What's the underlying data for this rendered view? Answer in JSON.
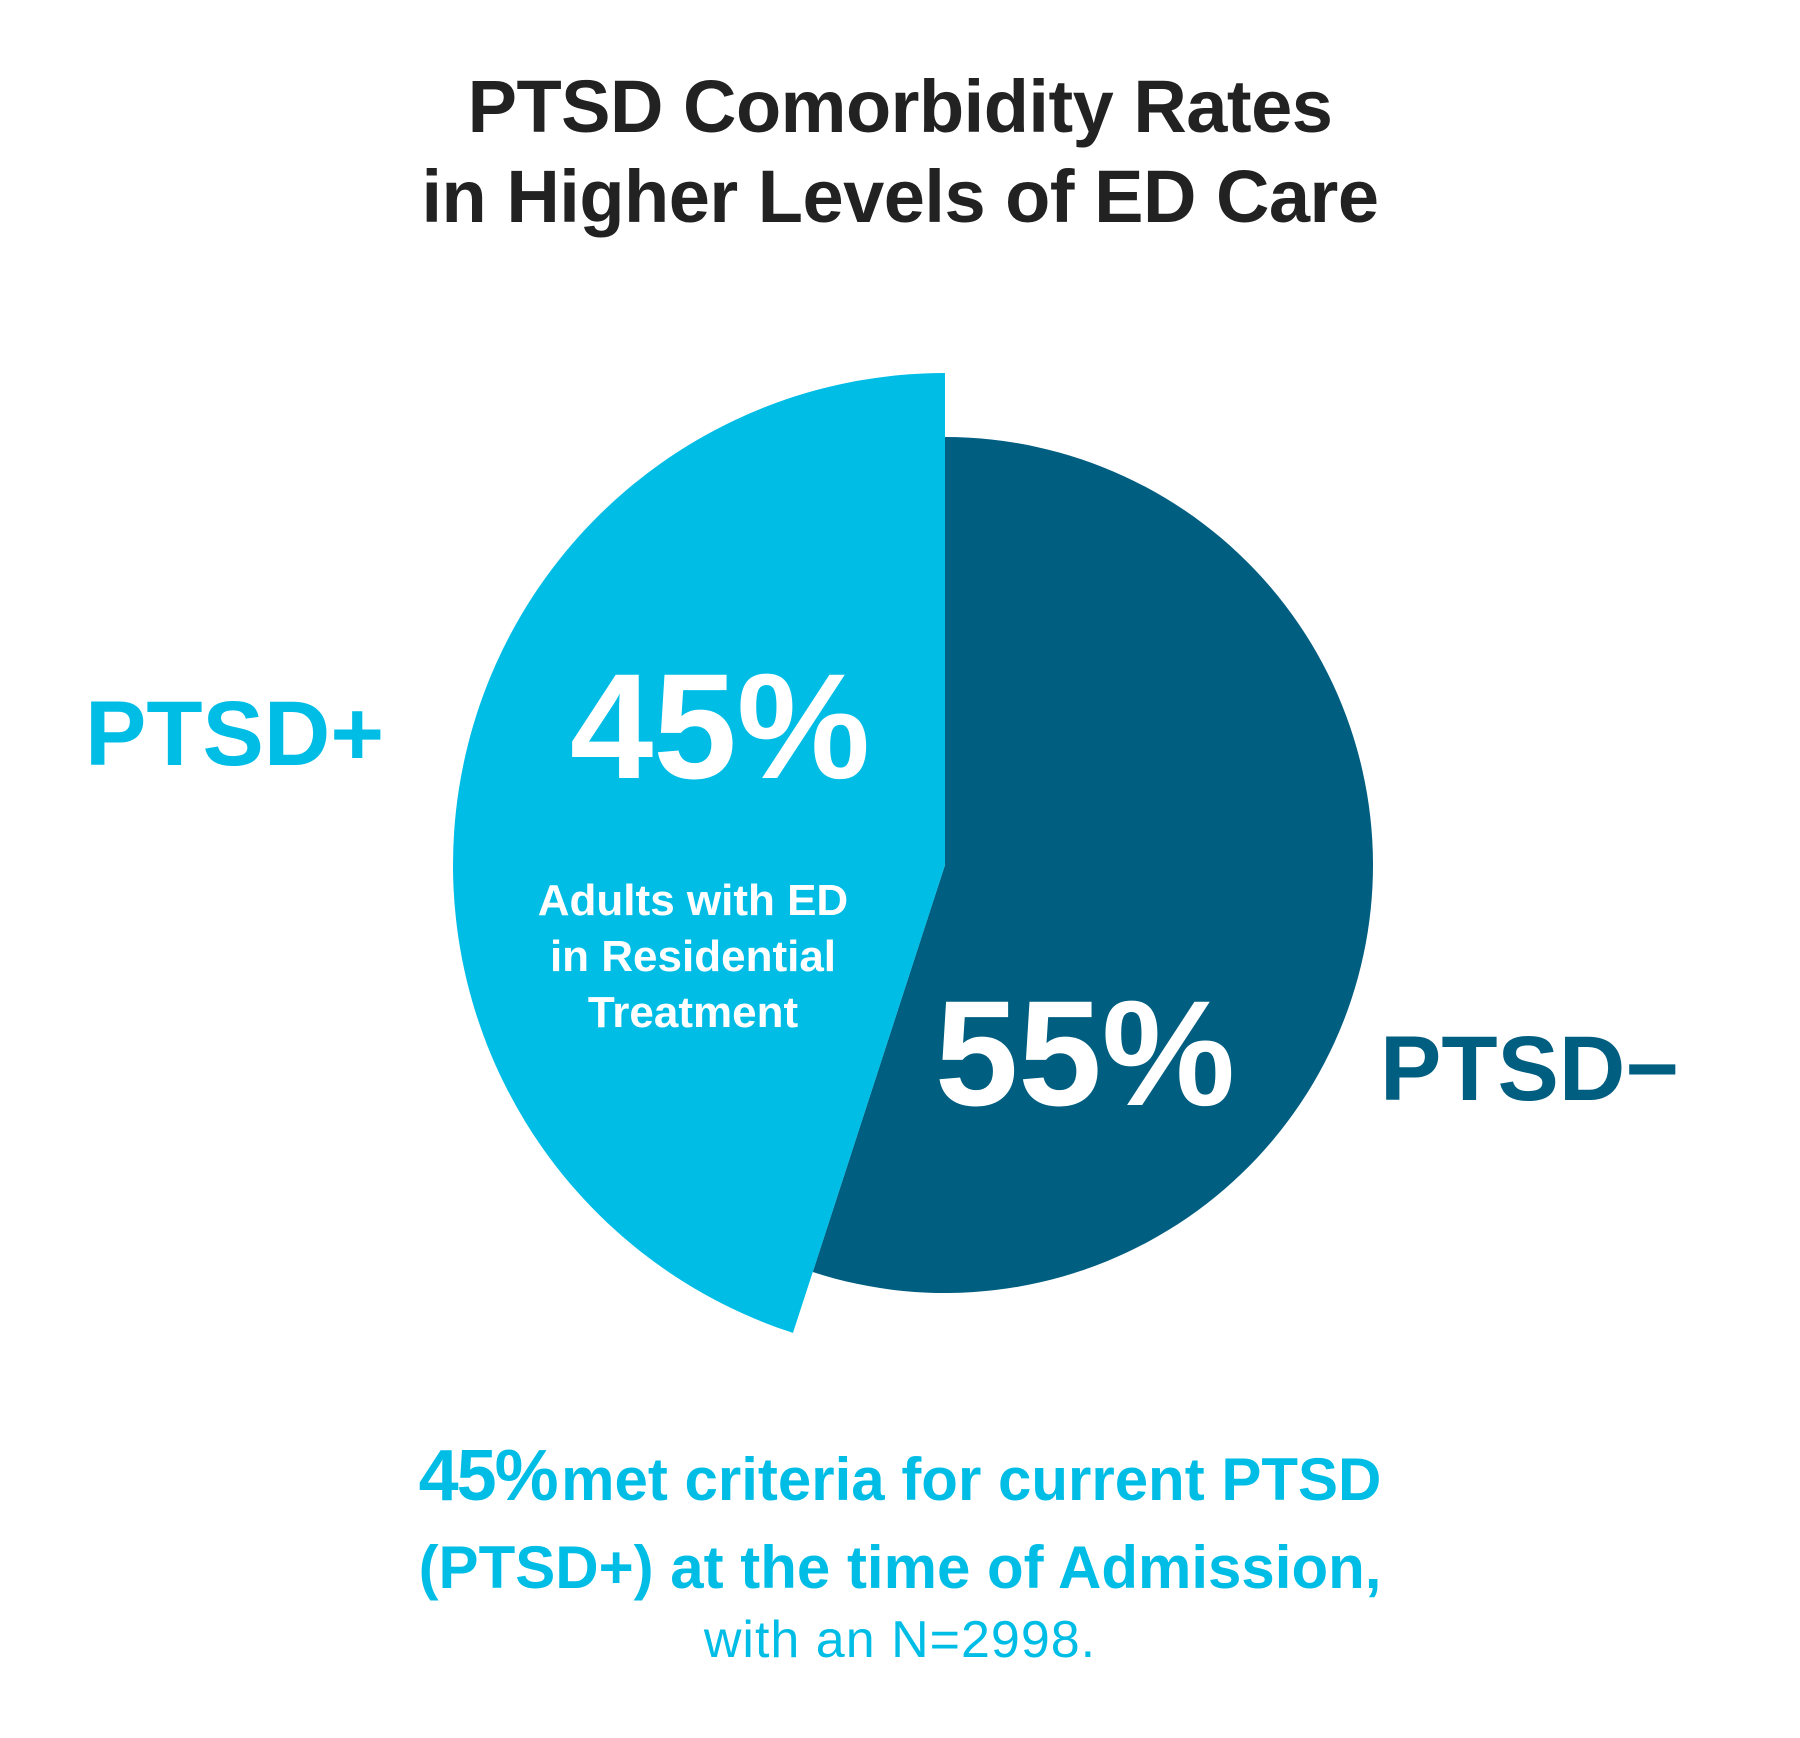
{
  "title": {
    "line1": "PTSD Comorbidity Rates",
    "line2": "in Higher Levels of ED Care"
  },
  "colors": {
    "positive": "#00BDE6",
    "negative": "#005E80",
    "title": "#222222",
    "slice_text": "#FFFFFF"
  },
  "chart_data": {
    "type": "pie",
    "categories": [
      "PTSD+",
      "PTSD−"
    ],
    "values": [
      45,
      55
    ],
    "value_labels": [
      "45%",
      "55%"
    ],
    "center_annotation": [
      "Adults with ED",
      "in Residential",
      "Treatment"
    ],
    "exploded_slice": "PTSD+",
    "legend": "labels beside slices"
  },
  "caption": {
    "highlight": "45%",
    "line1_rest": "met criteria for current PTSD",
    "line2": "(PTSD+) at the time of Admission,",
    "line3": "with an N=2998."
  }
}
